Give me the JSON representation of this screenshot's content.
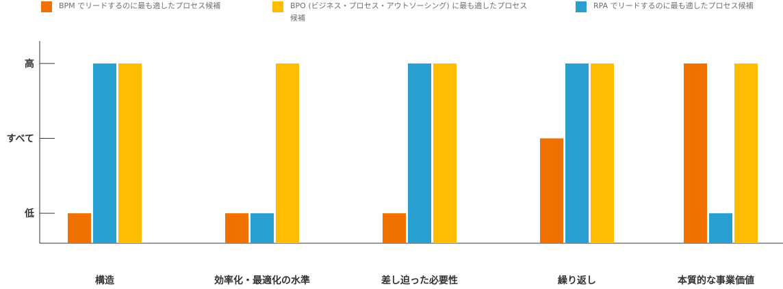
{
  "chart_data": {
    "type": "bar",
    "categories": [
      "構造",
      "効率化・最適化の水準",
      "差し迫った必要性",
      "繰り返し",
      "本質的な事業価値"
    ],
    "yticks": [
      "低",
      "すべて",
      "高"
    ],
    "ylim": [
      0.6,
      3.3
    ],
    "series": [
      {
        "name": "BPM でリードするのに最も適したプロセス候補",
        "color": "#f07000",
        "values": [
          1,
          1,
          1,
          2,
          3
        ]
      },
      {
        "name": "RPA でリードするのに最も適したプロセス候補",
        "color": "#299fd1",
        "values": [
          3,
          1,
          3,
          3,
          1
        ]
      },
      {
        "name": "BPO (ビジネス・プロセス・アウトソーシング) に最も適したプロセス候補",
        "color": "#ffbc00",
        "values": [
          3,
          3,
          3,
          3,
          3
        ]
      }
    ],
    "legend": {
      "placement": "top",
      "items": [
        {
          "label": "BPM でリードするのに最も適したプロセス候補",
          "color": "#f07000"
        },
        {
          "label": "BPO (ビジネス・プロセス・アウトソーシング) に最も適したプロセス候補",
          "color": "#ffbc00"
        },
        {
          "label": "RPA でリードするのに最も適したプロセス候補",
          "color": "#299fd1"
        }
      ]
    },
    "grid": false
  }
}
